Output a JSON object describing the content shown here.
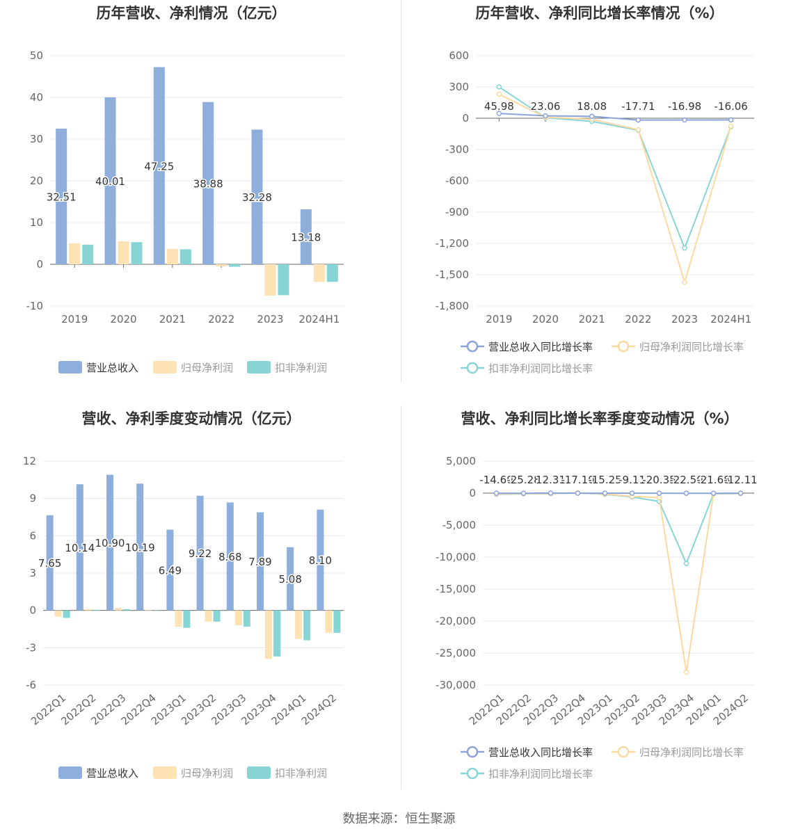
{
  "footer": {
    "source": "数据来源：恒生聚源"
  },
  "colors": {
    "revenue": "#8eaedc",
    "parent_profit": "#fde2b3",
    "deducted_profit": "#87d4d5",
    "line_revenue": "#8ca3da",
    "line_parent": "#fdd9a0",
    "line_deducted": "#88d4d8"
  },
  "chart_data": [
    {
      "id": "annual_bars",
      "type": "bar",
      "title": "历年营收、净利情况（亿元）",
      "categories": [
        "2019",
        "2020",
        "2021",
        "2022",
        "2023",
        "2024H1"
      ],
      "series": [
        {
          "name": "营业总收入",
          "values": [
            32.51,
            40.01,
            47.25,
            38.88,
            32.28,
            13.18
          ],
          "labels": [
            "32.51",
            "40.01",
            "47.25",
            "38.88",
            "32.28",
            "13.18"
          ]
        },
        {
          "name": "归母净利润",
          "values": [
            5.0,
            5.5,
            3.7,
            -0.5,
            -7.5,
            -4.2
          ]
        },
        {
          "name": "扣非净利润",
          "values": [
            4.7,
            5.3,
            3.6,
            -0.6,
            -7.4,
            -4.2
          ]
        }
      ],
      "yticks": [
        "50",
        "40",
        "30",
        "20",
        "10",
        "0",
        "-10"
      ],
      "ylim": [
        -10,
        50
      ],
      "legend": "bottom"
    },
    {
      "id": "annual_growth",
      "type": "line",
      "title": "历年营收、净利同比增长率情况（%）",
      "categories": [
        "2019",
        "2020",
        "2021",
        "2022",
        "2023",
        "2024H1"
      ],
      "series": [
        {
          "name": "营业总收入同比增长率",
          "values": [
            45.98,
            23.06,
            18.08,
            -17.71,
            -16.98,
            -16.06
          ],
          "labels": [
            "45.98",
            "23.06",
            "18.08",
            "-17.71",
            "-16.98",
            "-16.06"
          ]
        },
        {
          "name": "归母净利润同比增长率",
          "values": [
            230,
            10,
            -10,
            -110,
            -1570,
            -75
          ]
        },
        {
          "name": "扣非净利润同比增长率",
          "values": [
            300,
            5,
            -30,
            -115,
            -1245,
            -80
          ]
        }
      ],
      "yticks": [
        "600",
        "300",
        "0",
        "-300",
        "-600",
        "-900",
        "-1,200",
        "-1,500",
        "-1,800"
      ],
      "ylim": [
        -1800,
        600
      ],
      "legend": "bottom"
    },
    {
      "id": "quarterly_bars",
      "type": "bar",
      "title": "营收、净利季度变动情况（亿元）",
      "categories": [
        "2022Q1",
        "2022Q2",
        "2022Q3",
        "2022Q4",
        "2023Q1",
        "2023Q2",
        "2023Q3",
        "2023Q4",
        "2024Q1",
        "2024Q2"
      ],
      "series": [
        {
          "name": "营业总收入",
          "values": [
            7.65,
            10.14,
            10.9,
            10.19,
            6.49,
            9.22,
            8.68,
            7.89,
            5.08,
            8.1
          ],
          "labels": [
            "7.65",
            "10.14",
            "10.90",
            "10.19",
            "6.49",
            "9.22",
            "8.68",
            "7.89",
            "5.08",
            "8.10"
          ]
        },
        {
          "name": "归母净利润",
          "values": [
            -0.5,
            0.1,
            0.2,
            0.05,
            -1.3,
            -0.9,
            -1.2,
            -3.9,
            -2.3,
            -1.8
          ]
        },
        {
          "name": "扣非净利润",
          "values": [
            -0.6,
            0.05,
            0.1,
            0.0,
            -1.4,
            -0.9,
            -1.3,
            -3.7,
            -2.4,
            -1.8
          ]
        }
      ],
      "yticks": [
        "12",
        "9",
        "6",
        "3",
        "0",
        "-3",
        "-6"
      ],
      "ylim": [
        -6,
        12
      ],
      "legend": "bottom"
    },
    {
      "id": "quarterly_growth",
      "type": "line",
      "title": "营收、净利同比增长率季度变动情况（%）",
      "categories": [
        "2022Q1",
        "2022Q2",
        "2022Q3",
        "2022Q4",
        "2023Q1",
        "2023Q2",
        "2023Q3",
        "2023Q4",
        "2024Q1",
        "2024Q2"
      ],
      "series": [
        {
          "name": "营业总收入同比增长率",
          "values": [
            -14.6,
            -25.28,
            12.31,
            -17.1,
            -15.25,
            -9.11,
            -20.35,
            -22.5,
            -21.68,
            -12.11
          ],
          "labels": [
            "-14.60",
            "-25.28",
            "12.31",
            "-17.10",
            "-15.25",
            "-9.11",
            "-20.35",
            "-22.50",
            "-21.68",
            "-12.11"
          ]
        },
        {
          "name": "归母净利润同比增长率",
          "values": [
            -150,
            -100,
            -80,
            50,
            -150,
            -500,
            -700,
            -28000,
            -100,
            -50
          ]
        },
        {
          "name": "扣非净利润同比增长率",
          "values": [
            -200,
            -120,
            -90,
            40,
            -200,
            -600,
            -1300,
            -11000,
            -120,
            -60
          ]
        }
      ],
      "yticks": [
        "5,000",
        "0",
        "-5,000",
        "-10,000",
        "-15,000",
        "-20,000",
        "-25,000",
        "-30,000"
      ],
      "ylim": [
        -30000,
        5000
      ],
      "legend": "bottom"
    }
  ]
}
